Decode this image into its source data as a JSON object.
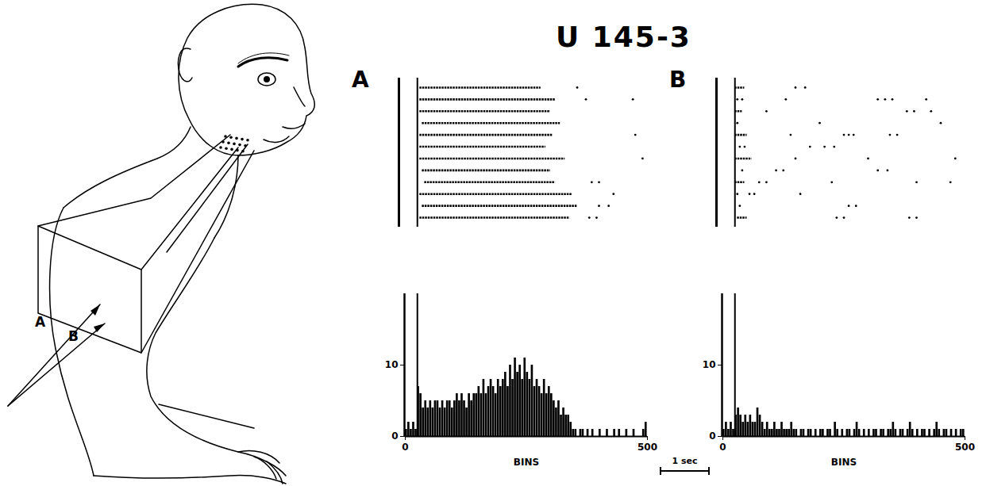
{
  "figure": {
    "title": "U 145-3",
    "scale_bar": {
      "label": "1 sec",
      "bins": 100
    },
    "drawing_labels": [
      "A",
      "B"
    ]
  },
  "chart_data": [
    {
      "type": "histogram",
      "panel": "A",
      "xlabel": "BINS",
      "bins": [
        0,
        5,
        10,
        15,
        20,
        25,
        30,
        35,
        40,
        45,
        50,
        55,
        60,
        65,
        70,
        75,
        80,
        85,
        90,
        95,
        100,
        105,
        110,
        115,
        120,
        125,
        130,
        135,
        140,
        145,
        150,
        155,
        160,
        165,
        170,
        175,
        180,
        185,
        190,
        195,
        200,
        205,
        210,
        215,
        220,
        225,
        230,
        235,
        240,
        245,
        250,
        255,
        260,
        265,
        270,
        275,
        280,
        285,
        290,
        295,
        300,
        305,
        310,
        315,
        320,
        325,
        330,
        335,
        340,
        345,
        350,
        355,
        360,
        365,
        370,
        375,
        380,
        385,
        390,
        395,
        400,
        405,
        410,
        415,
        420,
        425,
        430,
        435,
        440,
        445,
        450,
        455,
        460,
        465,
        470,
        475,
        480,
        485,
        490,
        495,
        500
      ],
      "values": [
        1,
        2,
        1,
        2,
        1,
        7,
        6,
        4,
        5,
        4,
        5,
        4,
        5,
        5,
        4,
        5,
        4,
        5,
        5,
        4,
        5,
        6,
        5,
        6,
        5,
        4,
        6,
        5,
        6,
        6,
        7,
        6,
        8,
        6,
        7,
        8,
        7,
        6,
        8,
        7,
        8,
        9,
        7,
        10,
        8,
        11,
        9,
        10,
        8,
        11,
        9,
        8,
        10,
        7,
        8,
        7,
        6,
        8,
        6,
        7,
        6,
        5,
        4,
        5,
        3,
        4,
        3,
        3,
        2,
        1,
        1,
        0,
        1,
        1,
        0,
        1,
        0,
        1,
        0,
        0,
        1,
        0,
        0,
        1,
        0,
        0,
        1,
        0,
        1,
        0,
        0,
        1,
        0,
        0,
        1,
        0,
        0,
        0,
        1,
        2
      ],
      "xlim": [
        0,
        500
      ],
      "xticks": [
        0,
        500
      ],
      "ylim": [
        0,
        20
      ],
      "yticks": [
        0,
        10
      ],
      "stimulus_onset": 25,
      "raster": [
        {
          "bursts": [
            [
              30,
              280
            ]
          ],
          "spikes": [
            355
          ]
        },
        {
          "bursts": [
            [
              30,
              310
            ]
          ],
          "spikes": [
            373,
            470
          ]
        },
        {
          "bursts": [
            [
              30,
              300
            ]
          ],
          "spikes": []
        },
        {
          "bursts": [
            [
              35,
              320
            ]
          ],
          "spikes": []
        },
        {
          "bursts": [
            [
              30,
              305
            ]
          ],
          "spikes": [
            475
          ]
        },
        {
          "bursts": [
            [
              30,
              290
            ]
          ],
          "spikes": []
        },
        {
          "bursts": [
            [
              30,
              330
            ]
          ],
          "spikes": [
            490
          ]
        },
        {
          "bursts": [
            [
              35,
              300
            ]
          ],
          "spikes": []
        },
        {
          "bursts": [
            [
              40,
              310
            ]
          ],
          "spikes": [
            385,
            400
          ]
        },
        {
          "bursts": [
            [
              30,
              345
            ]
          ],
          "spikes": [
            430
          ]
        },
        {
          "bursts": [
            [
              35,
              355
            ]
          ],
          "spikes": [
            400,
            420
          ]
        },
        {
          "bursts": [
            [
              30,
              340
            ]
          ],
          "spikes": [
            380,
            395
          ]
        }
      ]
    },
    {
      "type": "histogram",
      "panel": "B",
      "xlabel": "BINS",
      "bins": [
        0,
        5,
        10,
        15,
        20,
        25,
        30,
        35,
        40,
        45,
        50,
        55,
        60,
        65,
        70,
        75,
        80,
        85,
        90,
        95,
        100,
        105,
        110,
        115,
        120,
        125,
        130,
        135,
        140,
        145,
        150,
        155,
        160,
        165,
        170,
        175,
        180,
        185,
        190,
        195,
        200,
        205,
        210,
        215,
        220,
        225,
        230,
        235,
        240,
        245,
        250,
        255,
        260,
        265,
        270,
        275,
        280,
        285,
        290,
        295,
        300,
        305,
        310,
        315,
        320,
        325,
        330,
        335,
        340,
        345,
        350,
        355,
        360,
        365,
        370,
        375,
        380,
        385,
        390,
        395,
        400,
        405,
        410,
        415,
        420,
        425,
        430,
        435,
        440,
        445,
        450,
        455,
        460,
        465,
        470,
        475,
        480,
        485,
        490,
        495,
        500
      ],
      "values": [
        1,
        2,
        1,
        2,
        1,
        3,
        4,
        3,
        2,
        3,
        2,
        3,
        2,
        2,
        4,
        3,
        2,
        1,
        2,
        1,
        1,
        2,
        1,
        1,
        2,
        1,
        1,
        1,
        2,
        1,
        1,
        0,
        1,
        1,
        0,
        1,
        1,
        0,
        1,
        0,
        1,
        1,
        0,
        1,
        1,
        0,
        2,
        1,
        0,
        1,
        0,
        1,
        1,
        0,
        1,
        2,
        1,
        0,
        1,
        0,
        1,
        0,
        1,
        1,
        0,
        1,
        1,
        0,
        1,
        1,
        2,
        1,
        0,
        1,
        1,
        0,
        1,
        2,
        1,
        0,
        1,
        0,
        1,
        1,
        0,
        1,
        0,
        1,
        2,
        1,
        0,
        1,
        1,
        0,
        1,
        0,
        1,
        0,
        1,
        1
      ],
      "xlim": [
        0,
        500
      ],
      "xticks": [
        0,
        500
      ],
      "ylim": [
        0,
        20
      ],
      "yticks": [
        0,
        10
      ],
      "stimulus_onset": 25,
      "raster": [
        {
          "bursts": [
            [
              25,
              45
            ]
          ],
          "spikes": [
            150,
            170
          ]
        },
        {
          "bursts": [],
          "spikes": [
            30,
            40,
            130,
            320,
            335,
            350,
            420
          ]
        },
        {
          "bursts": [
            [
              25,
              40
            ]
          ],
          "spikes": [
            90,
            380,
            395,
            430
          ]
        },
        {
          "bursts": [],
          "spikes": [
            30,
            200,
            450
          ]
        },
        {
          "bursts": [
            [
              25,
              50
            ]
          ],
          "spikes": [
            140,
            250,
            260,
            270,
            345,
            360
          ]
        },
        {
          "bursts": [],
          "spikes": [
            35,
            45,
            180,
            210,
            230
          ]
        },
        {
          "bursts": [
            [
              25,
              60
            ]
          ],
          "spikes": [
            150,
            300,
            480
          ]
        },
        {
          "bursts": [],
          "spikes": [
            40,
            110,
            125,
            320,
            340
          ]
        },
        {
          "bursts": [
            [
              25,
              45
            ]
          ],
          "spikes": [
            75,
            90,
            225,
            400,
            470
          ]
        },
        {
          "bursts": [],
          "spikes": [
            30,
            55,
            65,
            160
          ]
        },
        {
          "bursts": [],
          "spikes": [
            35,
            260,
            275
          ]
        },
        {
          "bursts": [
            [
              30,
              50
            ]
          ],
          "spikes": [
            235,
            250,
            385,
            400
          ]
        }
      ]
    }
  ]
}
